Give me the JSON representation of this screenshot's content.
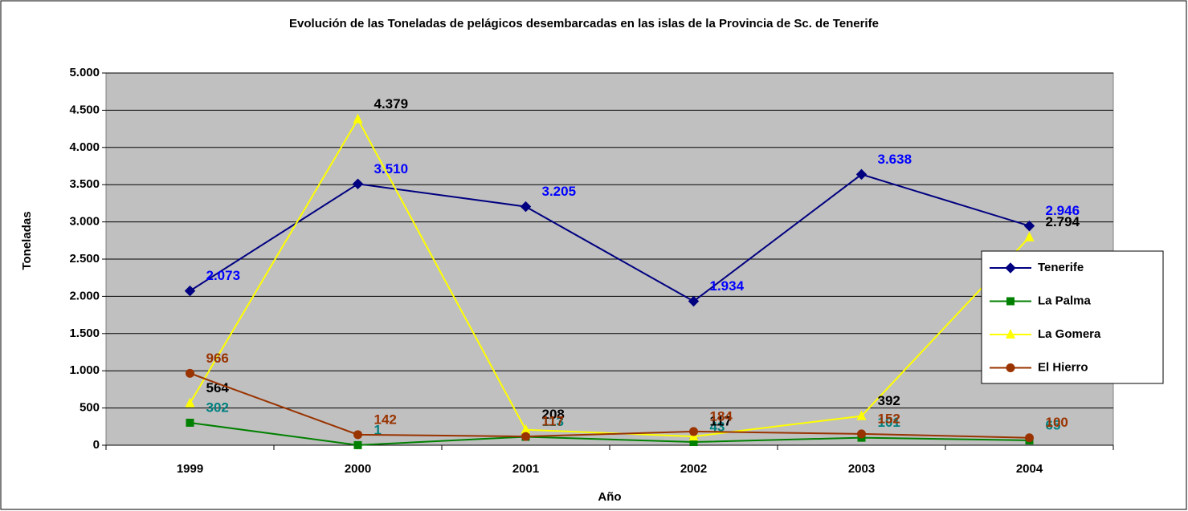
{
  "chart_data": {
    "type": "line",
    "title": "Evolución de las Toneladas de pelágicos desembarcadas en las islas de la Provincia de Sc. de Tenerife",
    "x_label": "Año",
    "y_label": "Toneladas",
    "categories": [
      "1999",
      "2000",
      "2001",
      "2002",
      "2003",
      "2004"
    ],
    "series": [
      {
        "name": "Tenerife",
        "color": "#000080",
        "label_color": "#0000ff",
        "marker": "diamond",
        "values": [
          2073,
          3510,
          3205,
          1934,
          3638,
          2946
        ],
        "value_labels": [
          "2.073",
          "3.510",
          "3.205",
          "1.934",
          "3.638",
          "2.946"
        ]
      },
      {
        "name": "La Palma",
        "color": "#008000",
        "label_color": "#008080",
        "marker": "square",
        "values": [
          302,
          1,
          113,
          43,
          101,
          65
        ],
        "value_labels": [
          "302",
          "1",
          "113",
          "43",
          "101",
          "65"
        ]
      },
      {
        "name": "La Gomera",
        "color": "#ffff00",
        "label_color": "#000000",
        "marker": "triangle",
        "values": [
          564,
          4379,
          208,
          117,
          392,
          2794
        ],
        "value_labels": [
          "564",
          "4.379",
          "208",
          "117",
          "392",
          "2.794"
        ]
      },
      {
        "name": "El Hierro",
        "color": "#993300",
        "label_color": "#993300",
        "marker": "circle",
        "values": [
          966,
          142,
          117,
          184,
          152,
          100
        ],
        "value_labels": [
          "966",
          "142",
          "117",
          "184",
          "152",
          "100"
        ]
      }
    ],
    "ylim": [
      0,
      5000
    ],
    "yticks": [
      0,
      500,
      {
        "value": 1000,
        "label": "1.000"
      },
      {
        "value": 1500,
        "label": "1.500"
      },
      {
        "value": 2000,
        "label": "2.000"
      },
      {
        "value": 2500,
        "label": "2.500"
      },
      {
        "value": 3000,
        "label": "3.000"
      },
      {
        "value": 3500,
        "label": "3.500"
      },
      {
        "value": 4000,
        "label": "4.000"
      },
      {
        "value": 4500,
        "label": "4.500"
      },
      {
        "value": 5000,
        "label": "5.000"
      }
    ],
    "grid": true,
    "legend": "right"
  }
}
